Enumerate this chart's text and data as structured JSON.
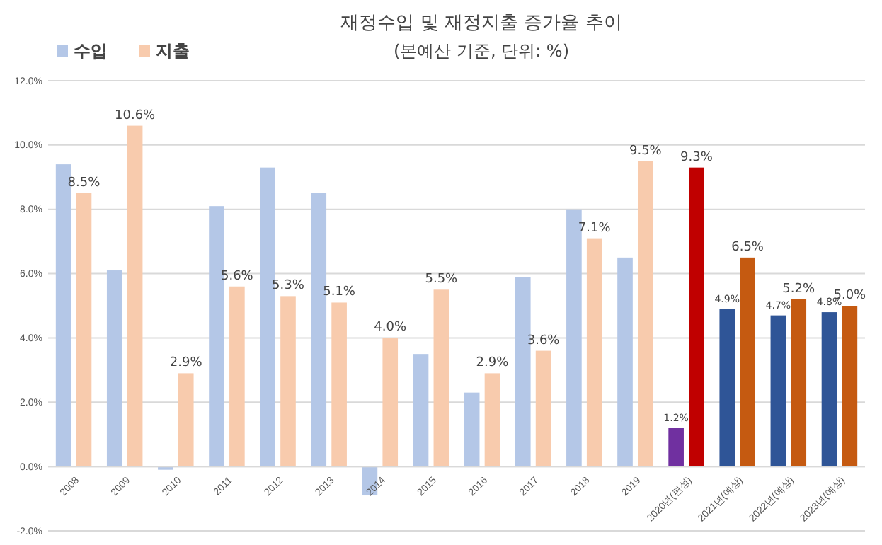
{
  "chart_data": {
    "type": "bar",
    "title": "재정수입 및 재정지출 증가율 추이",
    "subtitle": "(본예산 기준, 단위: %)",
    "categories": [
      "2008",
      "2009",
      "2010",
      "2011",
      "2012",
      "2013",
      "2014",
      "2015",
      "2016",
      "2017",
      "2018",
      "2019",
      "2020년(편성)",
      "2021년(예상)",
      "2022년(예상)",
      "2023년(예상)"
    ],
    "series": [
      {
        "name": "수입",
        "color": "#b4c7e7",
        "colors": [
          "#b4c7e7",
          "#b4c7e7",
          "#b4c7e7",
          "#b4c7e7",
          "#b4c7e7",
          "#b4c7e7",
          "#b4c7e7",
          "#b4c7e7",
          "#b4c7e7",
          "#b4c7e7",
          "#b4c7e7",
          "#b4c7e7",
          "#7030a0",
          "#2f5597",
          "#2f5597",
          "#2f5597"
        ],
        "values": [
          9.4,
          6.1,
          -0.1,
          8.1,
          9.3,
          8.5,
          -0.9,
          3.5,
          2.3,
          5.9,
          8.0,
          6.5,
          1.2,
          4.9,
          4.7,
          4.8
        ],
        "value_labels": [
          null,
          null,
          null,
          null,
          null,
          null,
          null,
          null,
          null,
          null,
          null,
          null,
          "1.2%",
          "4.9%",
          "4.7%",
          "4.8%"
        ]
      },
      {
        "name": "지출",
        "color": "#f8cbad",
        "colors": [
          "#f8cbad",
          "#f8cbad",
          "#f8cbad",
          "#f8cbad",
          "#f8cbad",
          "#f8cbad",
          "#f8cbad",
          "#f8cbad",
          "#f8cbad",
          "#f8cbad",
          "#f8cbad",
          "#f8cbad",
          "#c00000",
          "#c55a11",
          "#c55a11",
          "#c55a11"
        ],
        "values": [
          8.5,
          10.6,
          2.9,
          5.6,
          5.3,
          5.1,
          4.0,
          5.5,
          2.9,
          3.6,
          7.1,
          9.5,
          9.3,
          6.5,
          5.2,
          5.0
        ],
        "value_labels": [
          "8.5%",
          "10.6%",
          "2.9%",
          "5.6%",
          "5.3%",
          "5.1%",
          "4.0%",
          "5.5%",
          "2.9%",
          "3.6%",
          "7.1%",
          "9.5%",
          "9.3%",
          "6.5%",
          "5.2%",
          "5.0%"
        ]
      }
    ],
    "ylim": [
      -2,
      12
    ],
    "yticks": [
      {
        "value": -2,
        "label": "-2.0%"
      },
      {
        "value": 0,
        "label": "0.0%"
      },
      {
        "value": 2,
        "label": "2.0%"
      },
      {
        "value": 4,
        "label": "4.0%"
      },
      {
        "value": 6,
        "label": "6.0%"
      },
      {
        "value": 8,
        "label": "8.0%"
      },
      {
        "value": 10,
        "label": "10.0%"
      },
      {
        "value": 12,
        "label": "12.0%"
      }
    ],
    "grid": "y",
    "legend": "top left"
  }
}
